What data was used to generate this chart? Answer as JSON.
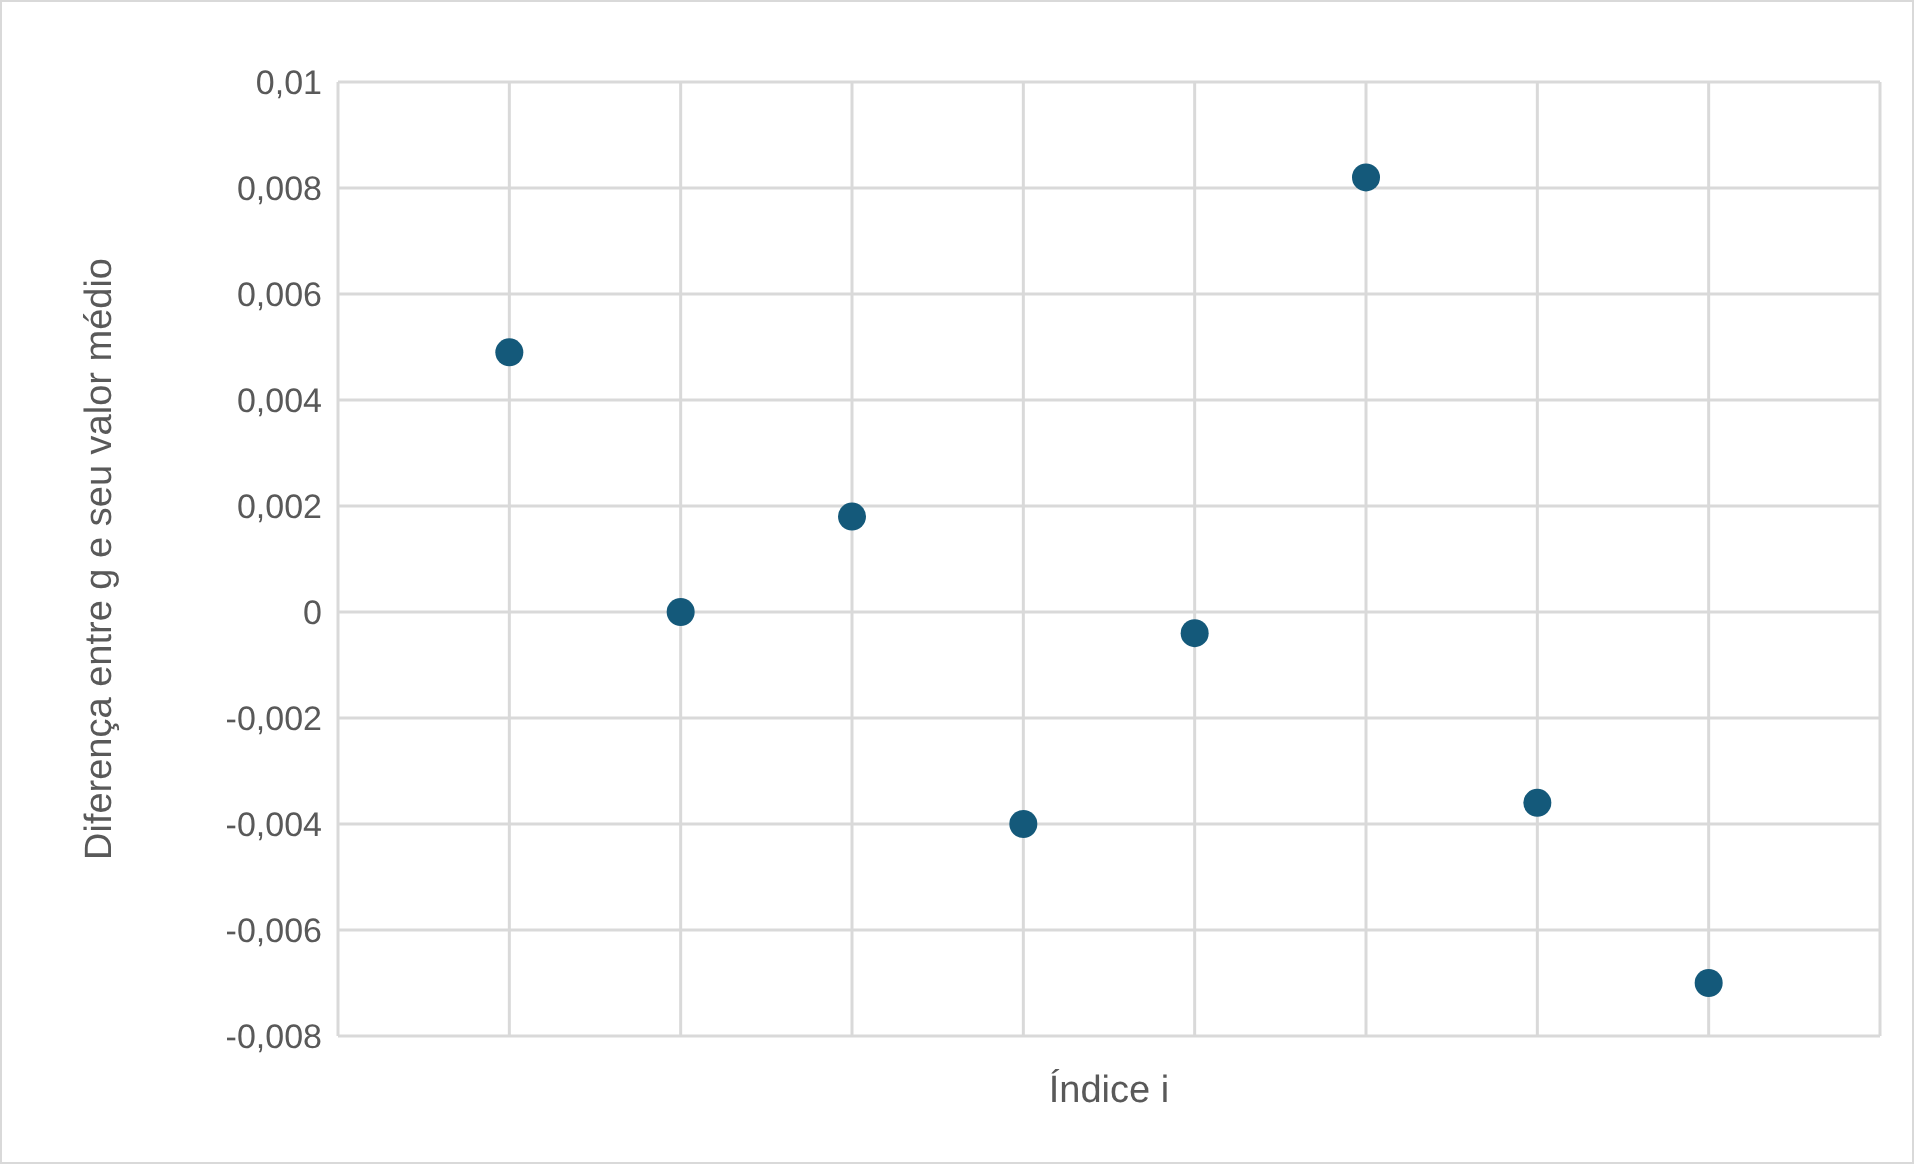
{
  "chart_data": {
    "type": "scatter",
    "xlabel": "Índice i",
    "ylabel": "Diferença entre g e seu valor médio",
    "categories": [
      null,
      null,
      null,
      null,
      null,
      null,
      null,
      null
    ],
    "series": [
      {
        "color": "#14597a",
        "values": [
          0.0049,
          0,
          0.0018,
          -0.004,
          -0.0004,
          0.0082,
          -0.0036,
          -0.007
        ]
      }
    ],
    "ylim": [
      -0.008,
      0.01
    ],
    "yticks": [
      {
        "value": -0.008,
        "label": "-0,008"
      },
      {
        "value": -0.006,
        "label": "-0,006"
      },
      {
        "value": -0.004,
        "label": "-0,004"
      },
      {
        "value": -0.002,
        "label": "-0,002"
      },
      0,
      {
        "value": 0.002,
        "label": "0,002"
      },
      {
        "value": 0.004,
        "label": "0,004"
      },
      {
        "value": 0.006,
        "label": "0,006"
      },
      {
        "value": 0.008,
        "label": "0,008"
      },
      {
        "value": 0.01,
        "label": "0,01"
      }
    ],
    "grid": true,
    "marker": "circle",
    "legend": false
  }
}
